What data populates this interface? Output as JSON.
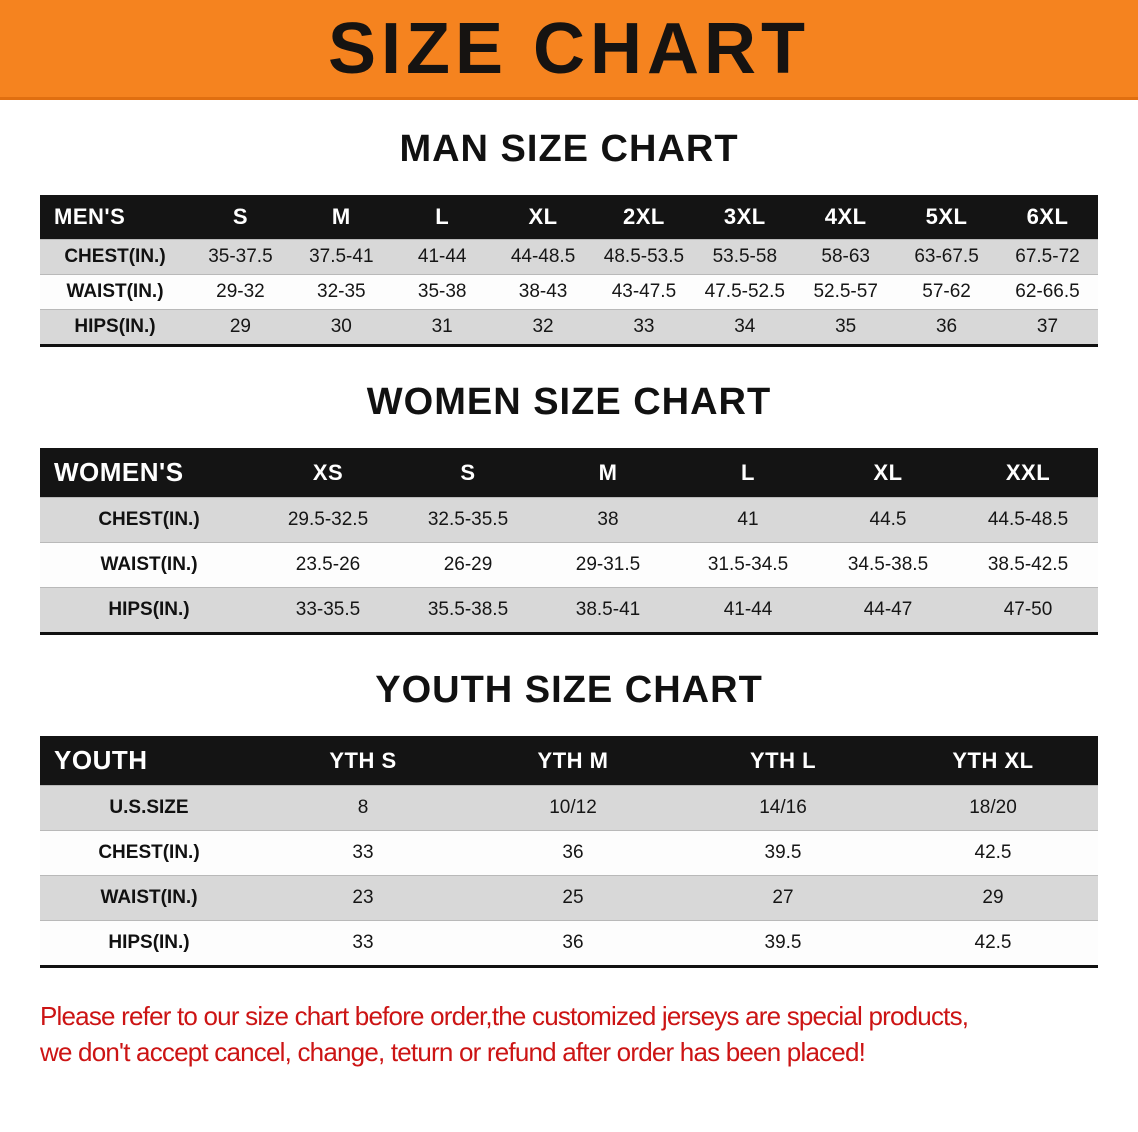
{
  "banner": {
    "title": "SIZE CHART"
  },
  "colors": {
    "banner_bg": "#f5831f",
    "header_bg": "#141414",
    "row_alt": "#d8d8d8",
    "disclaimer_red": "#cc1414"
  },
  "sections": [
    {
      "id": "men",
      "heading": "MAN SIZE CHART",
      "table": {
        "header": [
          "MEN'S",
          "S",
          "M",
          "L",
          "XL",
          "2XL",
          "3XL",
          "4XL",
          "5XL",
          "6XL"
        ],
        "rows": [
          [
            "CHEST(IN.)",
            "35-37.5",
            "37.5-41",
            "41-44",
            "44-48.5",
            "48.5-53.5",
            "53.5-58",
            "58-63",
            "63-67.5",
            "67.5-72"
          ],
          [
            "WAIST(IN.)",
            "29-32",
            "32-35",
            "35-38",
            "38-43",
            "43-47.5",
            "47.5-52.5",
            "52.5-57",
            "57-62",
            "62-66.5"
          ],
          [
            "HIPS(IN.)",
            "29",
            "30",
            "31",
            "32",
            "33",
            "34",
            "35",
            "36",
            "37"
          ]
        ]
      }
    },
    {
      "id": "women",
      "heading": "WOMEN SIZE CHART",
      "table": {
        "header": [
          "WOMEN'S",
          "XS",
          "S",
          "M",
          "L",
          "XL",
          "XXL"
        ],
        "rows": [
          [
            "CHEST(IN.)",
            "29.5-32.5",
            "32.5-35.5",
            "38",
            "41",
            "44.5",
            "44.5-48.5"
          ],
          [
            "WAIST(IN.)",
            "23.5-26",
            "26-29",
            "29-31.5",
            "31.5-34.5",
            "34.5-38.5",
            "38.5-42.5"
          ],
          [
            "HIPS(IN.)",
            "33-35.5",
            "35.5-38.5",
            "38.5-41",
            "41-44",
            "44-47",
            "47-50"
          ]
        ]
      }
    },
    {
      "id": "youth",
      "heading": "YOUTH SIZE CHART",
      "table": {
        "header": [
          "YOUTH",
          "YTH S",
          "YTH M",
          "YTH L",
          "YTH XL"
        ],
        "rows": [
          [
            "U.S.SIZE",
            "8",
            "10/12",
            "14/16",
            "18/20"
          ],
          [
            "CHEST(IN.)",
            "33",
            "36",
            "39.5",
            "42.5"
          ],
          [
            "WAIST(IN.)",
            "23",
            "25",
            "27",
            "29"
          ],
          [
            "HIPS(IN.)",
            "33",
            "36",
            "39.5",
            "42.5"
          ]
        ]
      }
    }
  ],
  "disclaimer": {
    "line1": "Please refer to our size chart before order,the customized jerseys are special products,",
    "line2": "we don't accept cancel, change, teturn or refund after order has been placed!"
  }
}
